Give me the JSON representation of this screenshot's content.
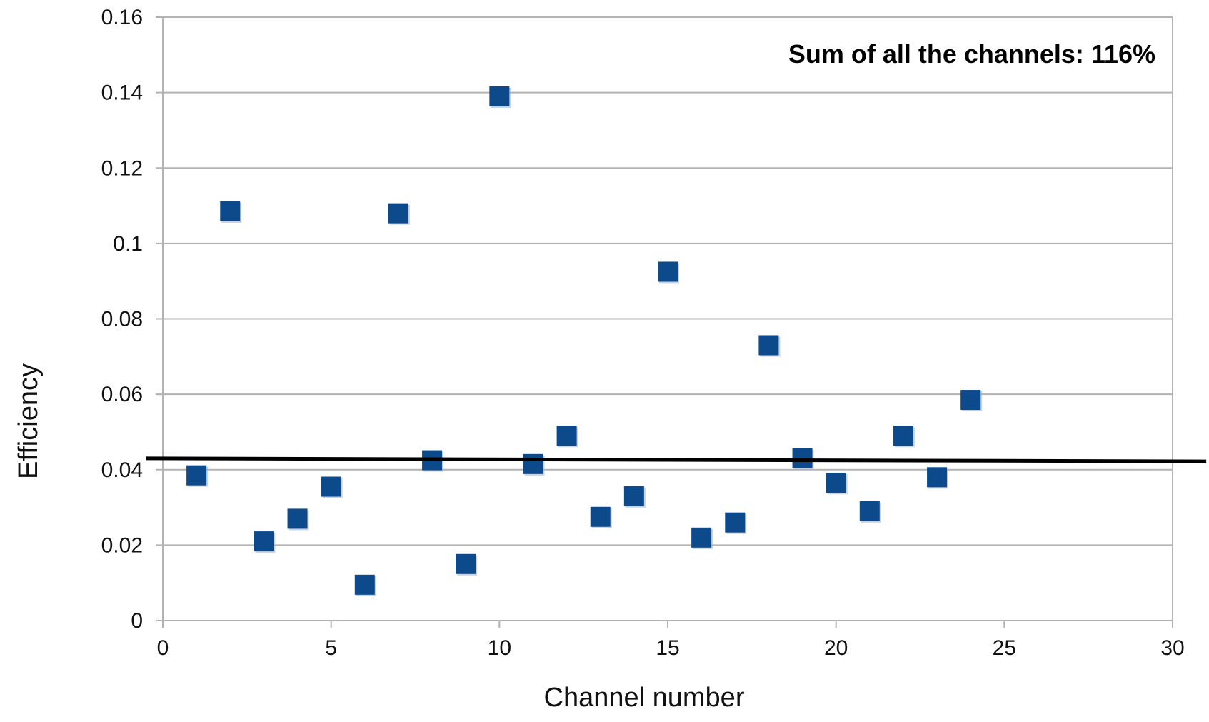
{
  "chart_data": {
    "type": "scatter",
    "title": "",
    "xlabel": "Channel number",
    "ylabel": "Efficiency",
    "xlim": [
      0,
      30
    ],
    "ylim": [
      0,
      0.16
    ],
    "x_ticks": [
      0,
      5,
      10,
      15,
      20,
      25,
      30
    ],
    "x_tick_labels": [
      "0",
      "5",
      "10",
      "15",
      "20",
      "25",
      "30"
    ],
    "y_ticks": [
      0,
      0.02,
      0.04,
      0.06,
      0.08,
      0.1,
      0.12,
      0.14,
      0.16
    ],
    "y_tick_labels": [
      "0",
      "0.02",
      "0.04",
      "0.06",
      "0.08",
      "0.1",
      "0.12",
      "0.14",
      "0.16"
    ],
    "grid": "horizontal",
    "series": [
      {
        "marker": "square",
        "color": "#0d4a8c",
        "points": [
          {
            "x": 1,
            "y": 0.0385
          },
          {
            "x": 2,
            "y": 0.1085
          },
          {
            "x": 3,
            "y": 0.021
          },
          {
            "x": 4,
            "y": 0.027
          },
          {
            "x": 5,
            "y": 0.0355
          },
          {
            "x": 6,
            "y": 0.0095
          },
          {
            "x": 7,
            "y": 0.108
          },
          {
            "x": 8,
            "y": 0.0425
          },
          {
            "x": 9,
            "y": 0.015
          },
          {
            "x": 10,
            "y": 0.139
          },
          {
            "x": 11,
            "y": 0.0415
          },
          {
            "x": 12,
            "y": 0.049
          },
          {
            "x": 13,
            "y": 0.0275
          },
          {
            "x": 14,
            "y": 0.033
          },
          {
            "x": 15,
            "y": 0.0925
          },
          {
            "x": 16,
            "y": 0.022
          },
          {
            "x": 17,
            "y": 0.026
          },
          {
            "x": 18,
            "y": 0.073
          },
          {
            "x": 19,
            "y": 0.043
          },
          {
            "x": 20,
            "y": 0.0365
          },
          {
            "x": 21,
            "y": 0.029
          },
          {
            "x": 22,
            "y": 0.049
          },
          {
            "x": 23,
            "y": 0.038
          },
          {
            "x": 24,
            "y": 0.0585
          }
        ]
      }
    ],
    "reference_line": {
      "color": "#000000",
      "start": {
        "x": -0.5,
        "y": 0.043
      },
      "end": {
        "x": 31,
        "y": 0.0422
      }
    },
    "annotation": "Sum of all the channels: 116%"
  }
}
